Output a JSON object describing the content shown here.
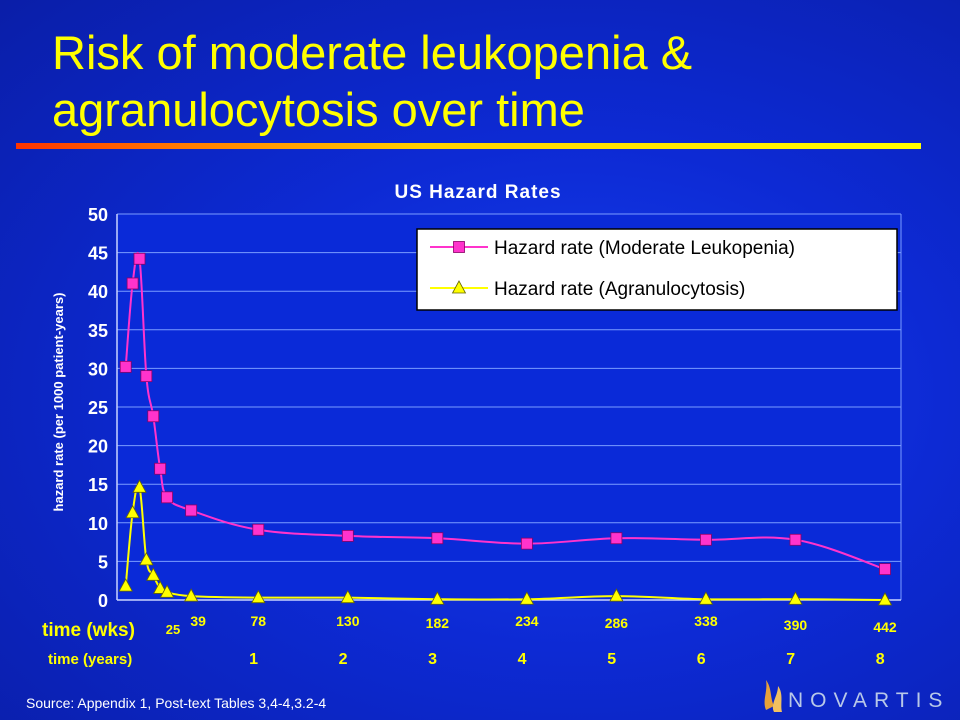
{
  "slide": {
    "title": "Risk of moderate leukopenia & agranulocytosis over time",
    "source": "Source: Appendix 1, Post-text Tables 3,4-4,3.2-4",
    "logo_text": "NOVARTIS"
  },
  "colors": {
    "title": "#ffff00",
    "leukopenia": "#ff33cc",
    "agranulocytosis": "#ffff00",
    "weeks_labels": "#ffff00",
    "axis_text": "#ffffff"
  },
  "chart_data": {
    "type": "line",
    "title": "US Hazard Rates",
    "ylabel": "hazard rate (per 1000 patient-years)",
    "xlabel": "time (wks)",
    "ylim": [
      0,
      50
    ],
    "yticks": [
      0,
      5,
      10,
      15,
      20,
      25,
      30,
      35,
      40,
      45,
      50
    ],
    "xlim": [
      0,
      442
    ],
    "grid": "horizontal",
    "legend_position": "top-right",
    "week_labels": [
      "25",
      "39",
      "78",
      "130",
      "182",
      "234",
      "286",
      "338",
      "390",
      "442"
    ],
    "years_label": "time (years)",
    "year_labels": [
      "1",
      "2",
      "3",
      "4",
      "5",
      "6",
      "7",
      "8"
    ],
    "series": [
      {
        "name": "Hazard rate (Moderate Leukopenia)",
        "marker": "square",
        "points": [
          [
            1,
            30.2
          ],
          [
            5,
            41
          ],
          [
            9,
            44.2
          ],
          [
            13,
            29
          ],
          [
            17,
            23.8
          ],
          [
            21,
            17
          ],
          [
            25,
            13.3
          ],
          [
            39,
            11.6
          ],
          [
            78,
            9.1
          ],
          [
            130,
            8.3
          ],
          [
            182,
            8
          ],
          [
            234,
            7.3
          ],
          [
            286,
            8
          ],
          [
            338,
            7.8
          ],
          [
            390,
            7.8
          ],
          [
            442,
            4
          ]
        ]
      },
      {
        "name": "Hazard rate (Agranulocytosis)",
        "marker": "triangle",
        "points": [
          [
            1,
            1.8
          ],
          [
            5,
            11.3
          ],
          [
            9,
            14.6
          ],
          [
            13,
            5.2
          ],
          [
            17,
            3.2
          ],
          [
            21,
            1.5
          ],
          [
            25,
            1
          ],
          [
            39,
            0.5
          ],
          [
            78,
            0.3
          ],
          [
            130,
            0.3
          ],
          [
            182,
            0.1
          ],
          [
            234,
            0.1
          ],
          [
            286,
            0.5
          ],
          [
            338,
            0.1
          ],
          [
            390,
            0.1
          ],
          [
            442,
            0
          ]
        ]
      }
    ]
  }
}
